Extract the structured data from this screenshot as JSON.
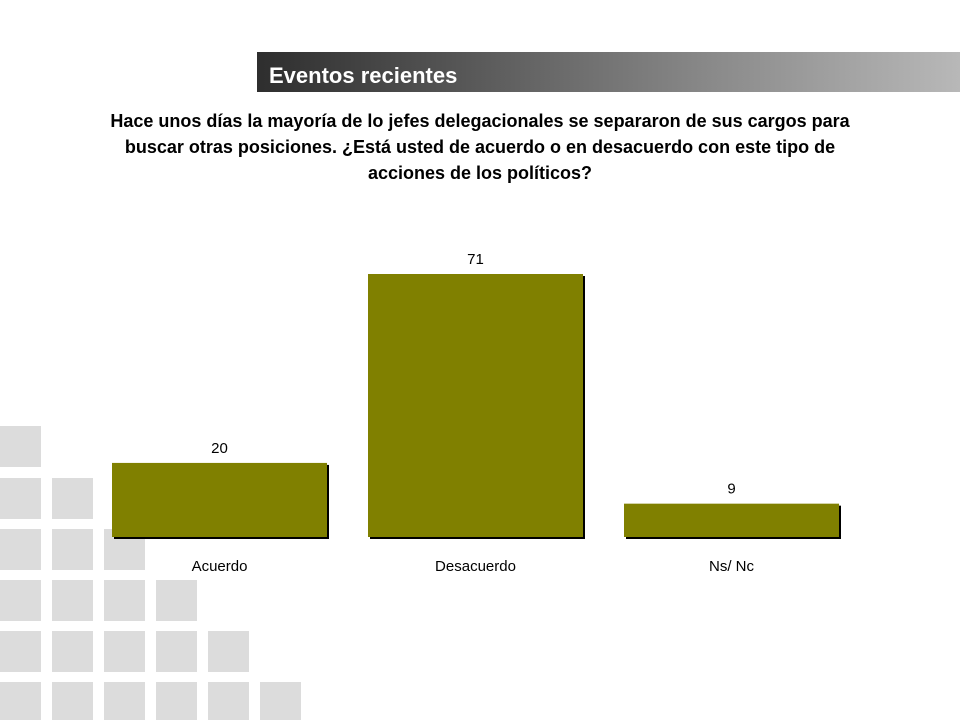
{
  "header": {
    "section_title": "Eventos recientes",
    "question": "Hace unos días la mayoría de lo jefes delegacionales se separaron de sus cargos para buscar otras posiciones. ¿Está usted de acuerdo o en desacuerdo con este tipo de acciones de los políticos?"
  },
  "colors": {
    "bar_fill": "#808000",
    "bar_shadow": "#000000",
    "deco_square": "#dcdcdc",
    "title_gradient_start": "#2e2e2e",
    "title_gradient_end": "#b8b8b8"
  },
  "chart_data": {
    "type": "bar",
    "title": "",
    "xlabel": "",
    "ylabel": "",
    "categories": [
      "Acuerdo",
      "Desacuerdo",
      "Ns/ Nc"
    ],
    "values": [
      20,
      71,
      9
    ],
    "data_labels": [
      "20",
      "71",
      "9"
    ],
    "ylim": [
      0,
      71
    ],
    "grid": false,
    "legend": "none"
  }
}
